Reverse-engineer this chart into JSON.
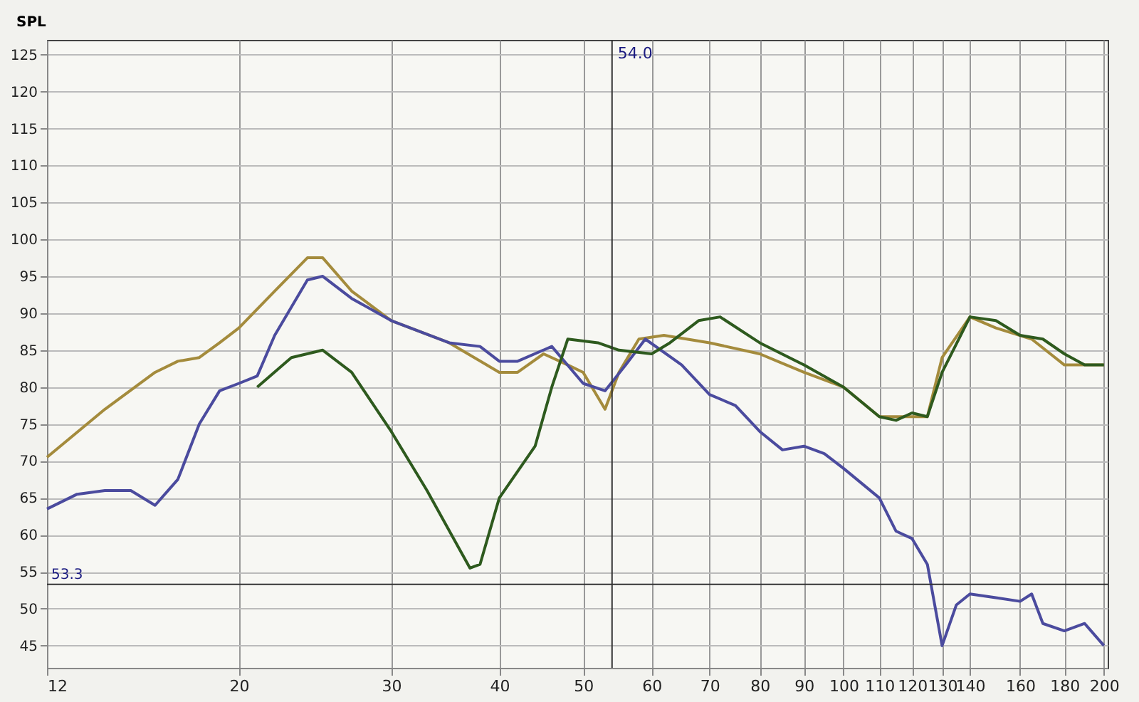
{
  "chart_data": {
    "type": "line",
    "ylabel": "SPL",
    "log": "x",
    "grid": true,
    "legend": false,
    "marker": "none",
    "line_style": "solid",
    "xlim": [
      12,
      202
    ],
    "xticks": [
      12,
      20,
      30,
      40,
      50,
      60,
      70,
      80,
      90,
      100,
      110,
      120,
      130,
      140,
      160,
      180,
      200
    ],
    "ylim": [
      42,
      127
    ],
    "yticks": [
      45,
      50,
      55,
      60,
      65,
      70,
      75,
      80,
      85,
      90,
      95,
      100,
      105,
      110,
      115,
      120,
      125
    ],
    "series": [
      {
        "color": "#a48b3c",
        "x": [
          12,
          14,
          16,
          17,
          18,
          19,
          20,
          22,
          24,
          25,
          27,
          30,
          35,
          40,
          42,
          45,
          48,
          50,
          53,
          55,
          58,
          62,
          70,
          80,
          90,
          100,
          110,
          120,
          125,
          130,
          140,
          150,
          165,
          180,
          200
        ],
        "values": [
          70.5,
          77,
          82,
          83.5,
          84,
          86,
          88,
          93,
          97.5,
          97.5,
          93,
          89,
          86,
          82,
          82,
          84.5,
          83,
          82,
          77,
          82,
          86.5,
          87,
          86,
          84.5,
          82,
          80,
          76,
          76,
          76,
          84,
          89.5,
          88,
          86.5,
          83,
          83
        ]
      },
      {
        "color": "#4b4b9e",
        "x": [
          12,
          13,
          14,
          15,
          16,
          17,
          18,
          19,
          20,
          21,
          22,
          24,
          25,
          27,
          30,
          35,
          38,
          40,
          42,
          46,
          50,
          53,
          56,
          59,
          65,
          70,
          75,
          80,
          85,
          90,
          95,
          100,
          110,
          115,
          120,
          125,
          130,
          135,
          140,
          150,
          160,
          165,
          170,
          180,
          190,
          200
        ],
        "values": [
          63.5,
          65.5,
          66,
          66,
          64,
          67.5,
          75,
          79.5,
          80.5,
          81.5,
          87,
          94.5,
          95,
          92,
          89,
          86,
          85.5,
          83.5,
          83.5,
          85.5,
          80.5,
          79.5,
          83,
          86.5,
          83,
          79,
          77.5,
          74,
          71.5,
          72,
          71,
          69,
          65,
          60.5,
          59.5,
          56,
          45,
          50.5,
          52,
          51.5,
          51,
          52,
          48,
          47,
          48,
          45
        ]
      },
      {
        "color": "#2e5a1e",
        "x": [
          21,
          23,
          25,
          27,
          30,
          33,
          36,
          37,
          38,
          40,
          44,
          46,
          48,
          52,
          55,
          60,
          63,
          68,
          72,
          80,
          90,
          100,
          110,
          115,
          120,
          125,
          130,
          140,
          150,
          160,
          170,
          180,
          190,
          200
        ],
        "values": [
          80,
          84,
          85,
          82,
          74,
          66,
          58,
          55.5,
          56,
          65,
          72,
          80,
          86.5,
          86,
          85,
          84.5,
          86,
          89,
          89.5,
          86,
          83,
          80,
          76,
          75.5,
          76.5,
          76,
          82,
          89.5,
          89,
          87,
          86.5,
          84.5,
          83,
          83
        ]
      }
    ],
    "ref_lines": [
      {
        "axis": "y",
        "value": 53.3,
        "label": "53.3",
        "color": "#333333"
      },
      {
        "axis": "x",
        "value": 54.0,
        "label": "54.0",
        "color": "#333333"
      }
    ]
  }
}
